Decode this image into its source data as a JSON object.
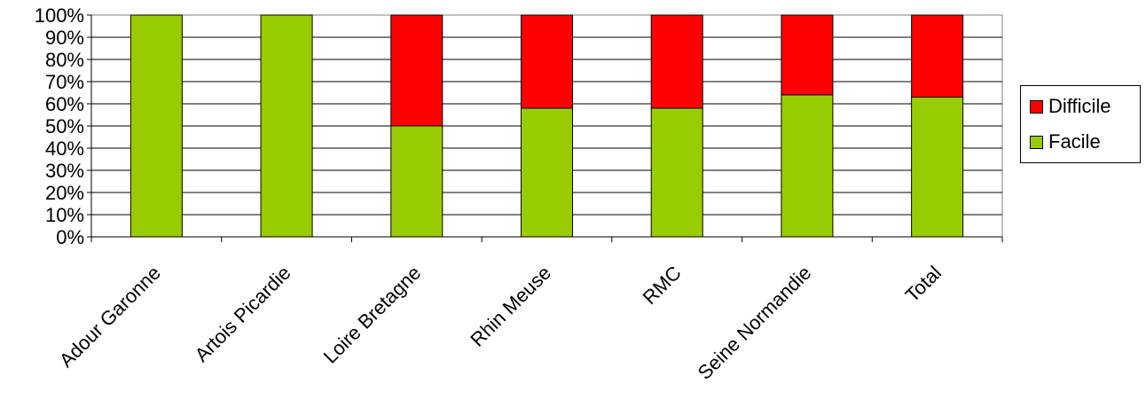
{
  "chart_data": {
    "type": "bar",
    "stacked": true,
    "percent_stacked": true,
    "categories": [
      "Adour Garonne",
      "Artois Picardie",
      "Loire Bretagne",
      "Rhin Meuse",
      "RMC",
      "Seine Normandie",
      "Total"
    ],
    "series": [
      {
        "name": "Facile",
        "color": "#99cc00",
        "values": [
          100,
          100,
          50,
          58,
          58,
          64,
          63
        ]
      },
      {
        "name": "Difficile",
        "color": "#ff0000",
        "values": [
          0,
          0,
          50,
          42,
          42,
          36,
          37
        ]
      }
    ],
    "ylim": [
      0,
      100
    ],
    "yticks": [
      "0%",
      "10%",
      "20%",
      "30%",
      "40%",
      "50%",
      "60%",
      "70%",
      "80%",
      "90%",
      "100%"
    ],
    "grid": true,
    "legend_position": "right",
    "legend": [
      "Difficile",
      "Facile"
    ]
  }
}
